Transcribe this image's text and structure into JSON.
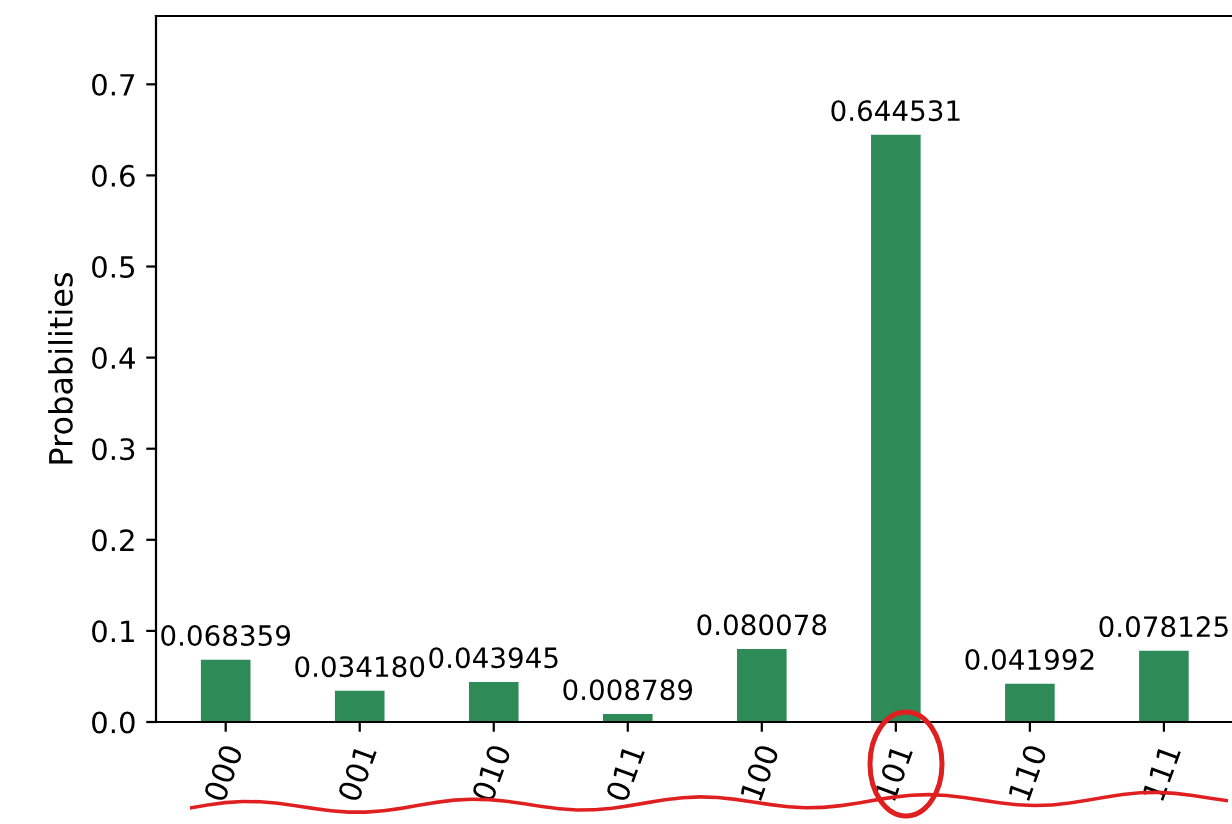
{
  "chart_data": {
    "type": "bar",
    "ylabel": "Probabilities",
    "categories": [
      "000",
      "001",
      "010",
      "011",
      "100",
      "101",
      "110",
      "111"
    ],
    "values": [
      0.068359,
      0.03418,
      0.043945,
      0.008789,
      0.080078,
      0.644531,
      0.041992,
      0.078125
    ],
    "value_labels": [
      "0.068359",
      "0.034180",
      "0.043945",
      "0.008789",
      "0.080078",
      "0.644531",
      "0.041992",
      "0.078125"
    ],
    "color": "#2e8b57",
    "ylim": [
      0,
      0.775
    ],
    "yticks": [
      {
        "value": 0,
        "label": "0.0"
      },
      {
        "value": 0.1,
        "label": "0.1"
      },
      {
        "value": 0.2,
        "label": "0.2"
      },
      {
        "value": 0.3,
        "label": "0.3"
      },
      {
        "value": 0.4,
        "label": "0.4"
      },
      {
        "value": 0.5,
        "label": "0.5"
      },
      {
        "value": 0.6,
        "label": "0.6"
      },
      {
        "value": 0.7,
        "label": "0.7"
      }
    ],
    "grid": false
  }
}
